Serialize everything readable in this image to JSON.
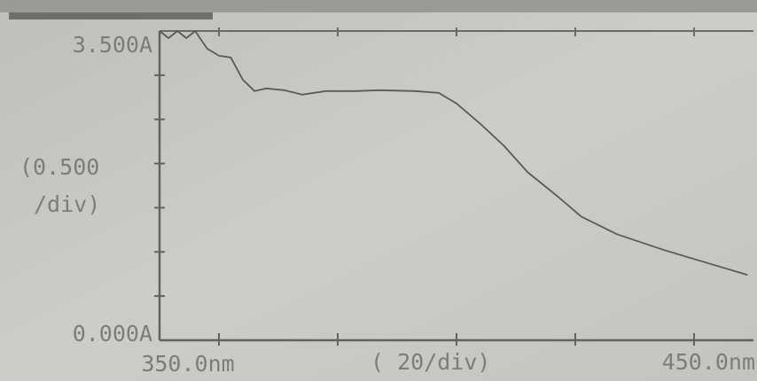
{
  "chart_data": {
    "type": "line",
    "y_range_labels": [
      "3.500A",
      "0.000A"
    ],
    "y_scale_label": [
      "(0.500",
      "/div)"
    ],
    "x_range_labels": [
      "350.0nm",
      "450.0nm"
    ],
    "x_scale_label": "( 20/div)",
    "x": [
      350,
      351.5,
      353,
      354.5,
      356,
      358,
      360,
      362,
      364,
      366,
      368,
      371,
      374,
      378,
      383,
      387,
      393,
      397,
      400,
      404,
      408,
      412,
      417,
      421,
      427,
      435,
      442,
      449
    ],
    "values": [
      3.5,
      3.42,
      3.5,
      3.42,
      3.5,
      3.3,
      3.22,
      3.2,
      2.95,
      2.82,
      2.85,
      2.83,
      2.78,
      2.82,
      2.82,
      2.83,
      2.82,
      2.8,
      2.68,
      2.45,
      2.2,
      1.9,
      1.63,
      1.4,
      1.2,
      1.02,
      0.88,
      0.74
    ],
    "color": "#5a5a58",
    "xlim": [
      350,
      450
    ],
    "ylim": [
      0,
      3.5
    ],
    "xticks": [
      360,
      380,
      400,
      420,
      440
    ],
    "yticks": [
      0.5,
      1,
      1.5,
      2,
      2.5,
      3
    ]
  }
}
